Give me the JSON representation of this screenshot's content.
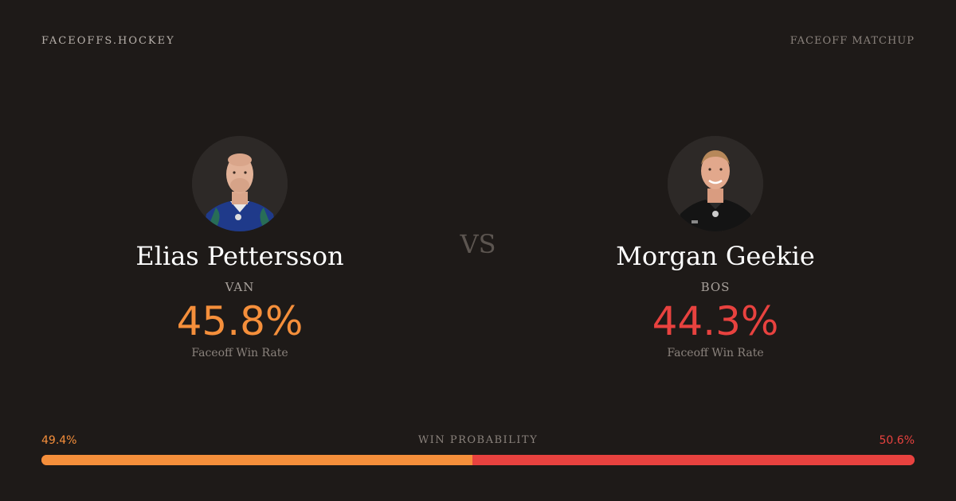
{
  "header": {
    "brand": "FACEOFFS.HOCKEY",
    "title": "FACEOFF MATCHUP"
  },
  "vs_label": "VS",
  "players": [
    {
      "name": "Elias Pettersson",
      "team": "VAN",
      "win_rate": "45.8%",
      "win_rate_label": "Faceoff Win Rate",
      "accent": "#f58f3b",
      "jersey_color": "#1f3a8a"
    },
    {
      "name": "Morgan Geekie",
      "team": "BOS",
      "win_rate": "44.3%",
      "win_rate_label": "Faceoff Win Rate",
      "accent": "#e8423f",
      "jersey_color": "#141414"
    }
  ],
  "win_probability": {
    "title": "WIN PROBABILITY",
    "left_label": "49.4%",
    "right_label": "50.6%",
    "left_value": 49.4,
    "right_value": 50.6,
    "left_color": "#f58f3b",
    "right_color": "#e8423f"
  }
}
